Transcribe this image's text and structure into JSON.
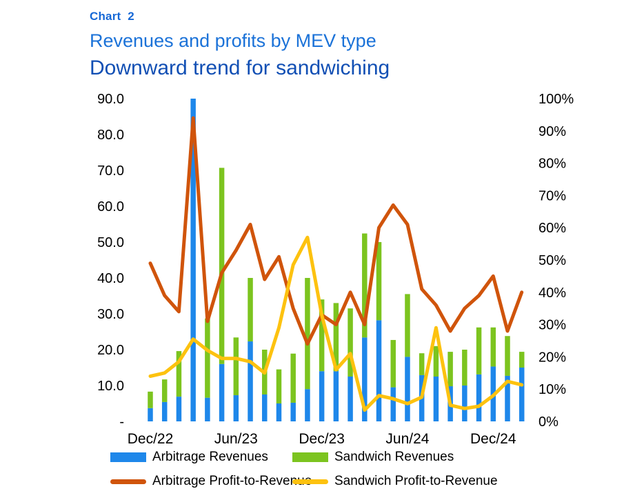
{
  "header": {
    "chart_label": "Chart  2",
    "title": "Revenues and profits by MEV type",
    "subtitle": "Downward trend for sandwiching"
  },
  "colors": {
    "chart_label_blue": "#1668d6",
    "title_blue": "#1b72d8",
    "subtitle_blue": "#114fb4",
    "axis_text": "#000000",
    "background": "#ffffff"
  },
  "chart_data": {
    "type": "bar",
    "subtype": "stacked bars with two overlay lines",
    "n_points": 27,
    "x_ticks": [
      {
        "index": 0,
        "label": "Dec/22"
      },
      {
        "index": 6,
        "label": "Jun/23"
      },
      {
        "index": 12,
        "label": "Dec/23"
      },
      {
        "index": 18,
        "label": "Jun/24"
      },
      {
        "index": 24,
        "label": "Dec/24"
      }
    ],
    "left_axis": {
      "range": [
        0,
        90
      ],
      "ticks": [
        {
          "label": "90.0",
          "value": 90
        },
        {
          "label": "80.0",
          "value": 80
        },
        {
          "label": "70.0",
          "value": 70
        },
        {
          "label": "60.0",
          "value": 60
        },
        {
          "label": "50.0",
          "value": 50
        },
        {
          "label": "40.0",
          "value": 40
        },
        {
          "label": "30.0",
          "value": 30
        },
        {
          "label": "20.0",
          "value": 20
        },
        {
          "label": "10.0",
          "value": 10
        },
        {
          "label": "-",
          "value": 0
        }
      ]
    },
    "right_axis": {
      "range": [
        0,
        100
      ],
      "ticks": [
        {
          "label": "100%",
          "value": 100
        },
        {
          "label": "90%",
          "value": 90
        },
        {
          "label": "80%",
          "value": 80
        },
        {
          "label": "70%",
          "value": 70
        },
        {
          "label": "60%",
          "value": 60
        },
        {
          "label": "50%",
          "value": 50
        },
        {
          "label": "40%",
          "value": 40
        },
        {
          "label": "30%",
          "value": 30
        },
        {
          "label": "20%",
          "value": 20
        },
        {
          "label": "10%",
          "value": 10
        },
        {
          "label": "0%",
          "value": 0
        }
      ]
    },
    "series": [
      {
        "name": "Arbitrage Revenues",
        "type": "bar",
        "axis": "left",
        "color": "#1e87ea",
        "values": [
          3.7,
          5.4,
          6.9,
          90,
          6.6,
          16,
          7.3,
          22.3,
          7.5,
          5,
          5.2,
          9,
          14,
          14,
          12.5,
          23.4,
          28.2,
          9.5,
          18,
          12.9,
          12.5,
          9.8,
          10,
          13.1,
          15.3,
          12.7,
          15
        ]
      },
      {
        "name": "Sandwich Revenues",
        "type": "bar",
        "axis": "left",
        "color": "#7cc41f",
        "values": [
          4.6,
          6.3,
          12.7,
          0,
          22.1,
          54.7,
          16.1,
          17.7,
          12.5,
          9.5,
          13.7,
          31,
          20,
          19,
          19,
          29,
          21.8,
          13.2,
          17.5,
          6.1,
          8.5,
          9.6,
          10,
          13.1,
          10.9,
          11.1,
          4.4
        ]
      },
      {
        "name": "Arbitrage Profit-to-Revenue",
        "type": "line",
        "axis": "right",
        "color": "#d0540b",
        "values": [
          49,
          39,
          34,
          94,
          31,
          46,
          53,
          61,
          44,
          51,
          35,
          24,
          33,
          30,
          40,
          30,
          60,
          67,
          61,
          41,
          36,
          28,
          35,
          39,
          45,
          28,
          40
        ]
      },
      {
        "name": "Sandwich Profit-to-Revenue",
        "type": "line",
        "axis": "right",
        "color": "#fdc20f",
        "values": [
          14,
          15,
          18.5,
          25.5,
          22,
          19.5,
          19.5,
          18.5,
          15,
          29,
          48.5,
          57,
          33,
          16,
          21,
          3.5,
          8,
          7,
          5.5,
          7.5,
          29,
          5,
          4,
          4.7,
          8,
          12.4,
          11.3
        ]
      }
    ],
    "grid": false,
    "legend_position": "bottom"
  },
  "legend": {
    "items": [
      {
        "label": "Arbitrage Revenues",
        "swatch": "bar",
        "series": 0
      },
      {
        "label": "Sandwich Revenues",
        "swatch": "bar",
        "series": 1
      },
      {
        "label": "Arbitrage Profit-to-Revenue",
        "swatch": "line",
        "series": 2
      },
      {
        "label": "Sandwich Profit-to-Revenue",
        "swatch": "line",
        "series": 3
      }
    ]
  }
}
